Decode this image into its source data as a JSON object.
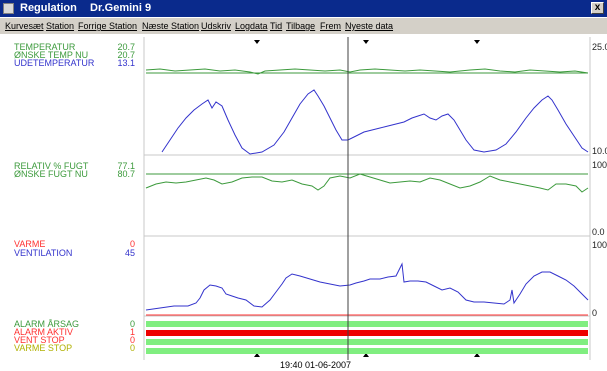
{
  "window": {
    "app_title": "Regulation",
    "subtitle": "Dr.Gemini 9",
    "close_symbol": "x"
  },
  "menu": [
    "Kurvesæt",
    "Station",
    "Forrige Station",
    "Næste Station",
    "Udskriv",
    "Logdata",
    "Tid",
    "Tilbage",
    "Frem",
    "Nyeste data"
  ],
  "panels": {
    "temperature": {
      "labels": [
        "TEMPERATUR",
        "ØNSKE TEMP NU",
        "UDETEMPERATUR"
      ],
      "values": [
        "20.7",
        "20.7",
        "13.1"
      ],
      "axis_top": "25.0",
      "axis_bottom": "10.0"
    },
    "humidity": {
      "labels": [
        "RELATIV % FUGT",
        "ØNSKE FUGT NU"
      ],
      "values": [
        "77.1",
        "80.7"
      ],
      "axis_top": "100.0",
      "axis_bottom": "0.0"
    },
    "ventilation": {
      "labels": [
        "VARME",
        "VENTILATION"
      ],
      "values": [
        "0",
        "45"
      ],
      "axis_top": "100",
      "axis_bottom": "0"
    },
    "alarms": {
      "labels": [
        "ALARM ÅRSAG",
        "ALARM AKTIV",
        "VENT STOP",
        "VARME STOP"
      ],
      "values": [
        "0",
        "1",
        "0",
        "0"
      ]
    }
  },
  "timestamp": "19:40  01-06-2007",
  "colors": {
    "titlebar": "#0a2a8c",
    "green": "#3c9a3c",
    "blue": "#3333cc",
    "red": "#ff3030",
    "bar_green": "#80ee80",
    "bar_red": "#ee0000"
  }
}
